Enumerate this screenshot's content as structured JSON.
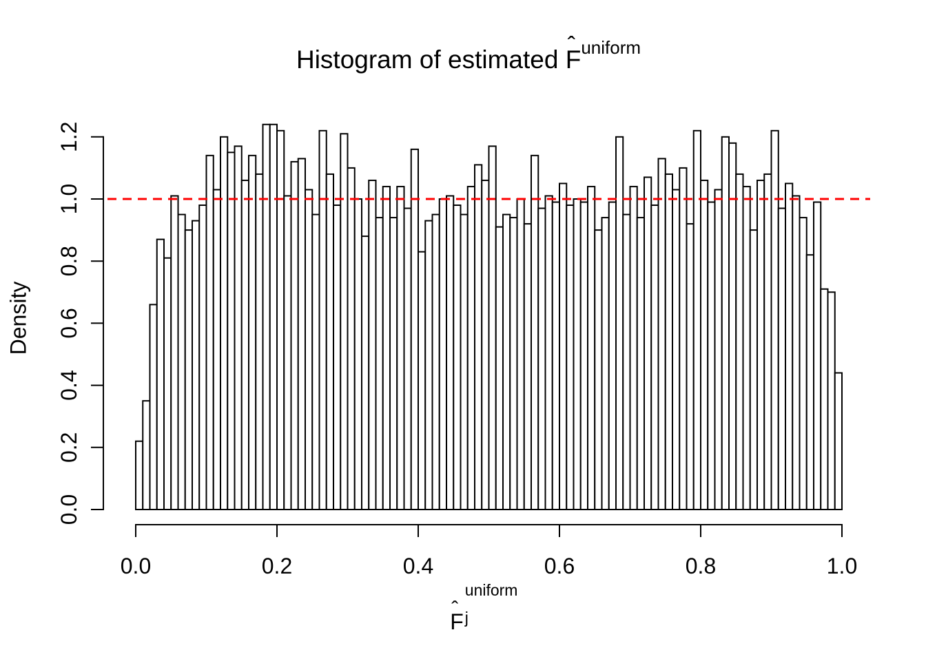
{
  "title": {
    "prefix": "Histogram of estimated ",
    "f": "F",
    "hat": "ˆ",
    "superscript": "uniform"
  },
  "axes": {
    "x": {
      "label": {
        "f": "F",
        "hat": "ˆ",
        "subscript": "j",
        "superscript": "uniform"
      },
      "ticks": [
        {
          "value": 0.0,
          "label": "0.0"
        },
        {
          "value": 0.2,
          "label": "0.2"
        },
        {
          "value": 0.4,
          "label": "0.4"
        },
        {
          "value": 0.6,
          "label": "0.6"
        },
        {
          "value": 0.8,
          "label": "0.8"
        },
        {
          "value": 1.0,
          "label": "1.0"
        }
      ]
    },
    "y": {
      "label": "Density",
      "ticks": [
        {
          "value": 0.0,
          "label": "0.0"
        },
        {
          "value": 0.2,
          "label": "0.2"
        },
        {
          "value": 0.4,
          "label": "0.4"
        },
        {
          "value": 0.6,
          "label": "0.6"
        },
        {
          "value": 0.8,
          "label": "0.8"
        },
        {
          "value": 1.0,
          "label": "1.0"
        },
        {
          "value": 1.2,
          "label": "1.2"
        }
      ]
    }
  },
  "reference_line": {
    "y": 1.0,
    "color": "#FF0000",
    "style": "dashed"
  },
  "style": {
    "bar_fill": "#FFFFFF",
    "bar_stroke": "#000000",
    "axis_color": "#000000",
    "background": "#FFFFFF"
  },
  "chart_data": {
    "type": "bar",
    "subtype": "histogram",
    "title": "Histogram of estimated F̂^uniform",
    "xlabel": "F̂_j^uniform",
    "ylabel": "Density",
    "xlim": [
      0.0,
      1.0
    ],
    "ylim": [
      0.0,
      1.2
    ],
    "bin_start": 0.0,
    "bin_width": 0.01,
    "grid": false,
    "reference_line_y": 1.0,
    "values": [
      0.22,
      0.35,
      0.66,
      0.87,
      0.81,
      1.01,
      0.95,
      0.9,
      0.93,
      0.98,
      1.14,
      1.03,
      1.2,
      1.15,
      1.17,
      1.06,
      1.14,
      1.08,
      1.24,
      1.24,
      1.22,
      1.01,
      1.12,
      1.13,
      1.03,
      0.95,
      1.22,
      1.08,
      0.98,
      1.21,
      1.1,
      1.0,
      0.88,
      1.06,
      0.94,
      1.04,
      0.94,
      1.04,
      0.97,
      1.16,
      0.83,
      0.93,
      0.95,
      1.0,
      1.01,
      0.98,
      0.95,
      1.04,
      1.11,
      1.06,
      1.17,
      0.91,
      0.95,
      0.94,
      1.0,
      0.92,
      1.14,
      0.97,
      1.01,
      0.99,
      1.05,
      0.98,
      1.0,
      0.99,
      1.04,
      0.9,
      0.94,
      0.99,
      1.2,
      0.95,
      1.04,
      0.94,
      1.07,
      0.98,
      1.13,
      1.08,
      1.03,
      1.1,
      0.92,
      1.22,
      1.06,
      0.99,
      1.03,
      1.2,
      1.18,
      1.08,
      1.04,
      0.9,
      1.06,
      1.08,
      1.22,
      0.97,
      1.05,
      1.01,
      0.94,
      0.82,
      0.99,
      0.71,
      0.7,
      0.44
    ]
  }
}
